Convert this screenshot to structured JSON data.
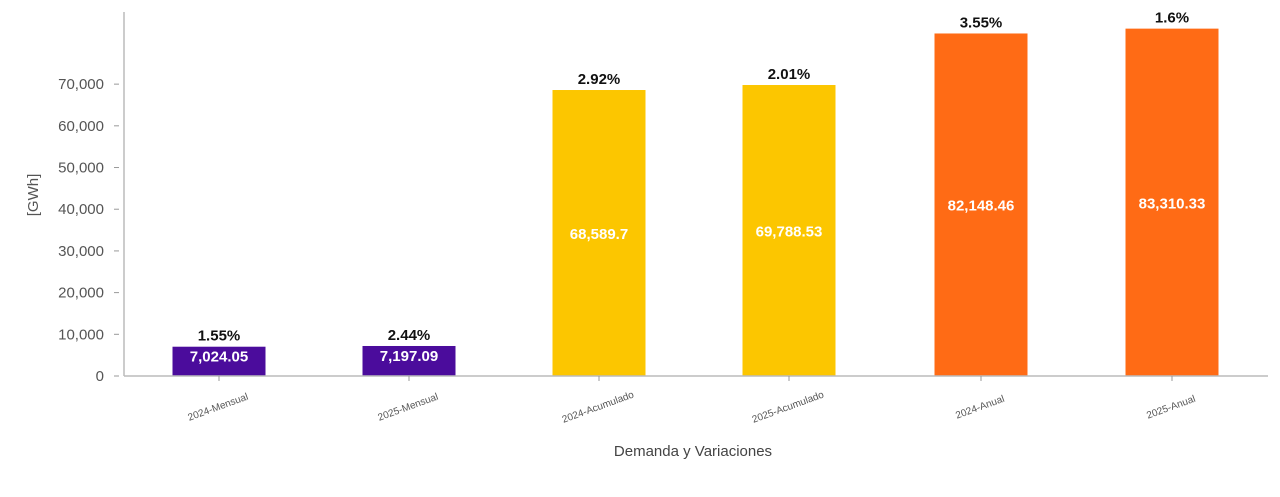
{
  "chart_data": {
    "type": "bar",
    "title": "",
    "xlabel": "Demanda y Variaciones",
    "ylabel": "[GWh]",
    "ylim": [
      0,
      87300
    ],
    "yticks": [
      0,
      10000,
      20000,
      30000,
      40000,
      50000,
      60000,
      70000
    ],
    "ytick_labels": [
      "0",
      "10,000",
      "20,000",
      "30,000",
      "40,000",
      "50,000",
      "60,000",
      "70,000"
    ],
    "grid": false,
    "legend": "none",
    "categories": [
      "2024-Mensual",
      "2025-Mensual",
      "2024-Acumulado",
      "2025-Acumulado",
      "2024-Anual",
      "2025-Anual"
    ],
    "values": [
      7024.05,
      7197.09,
      68589.7,
      69788.53,
      82148.46,
      83310.33
    ],
    "value_labels": [
      "7,024.05",
      "7,197.09",
      "68,589.7",
      "69,788.53",
      "82,148.46",
      "83,310.33"
    ],
    "variation_labels": [
      "1.55%",
      "2.44%",
      "2.92%",
      "2.01%",
      "3.55%",
      "1.6%"
    ],
    "colors": [
      "#4b0c9c",
      "#4b0c9c",
      "#fcc600",
      "#fcc600",
      "#ff6b15",
      "#ff6b15"
    ]
  }
}
